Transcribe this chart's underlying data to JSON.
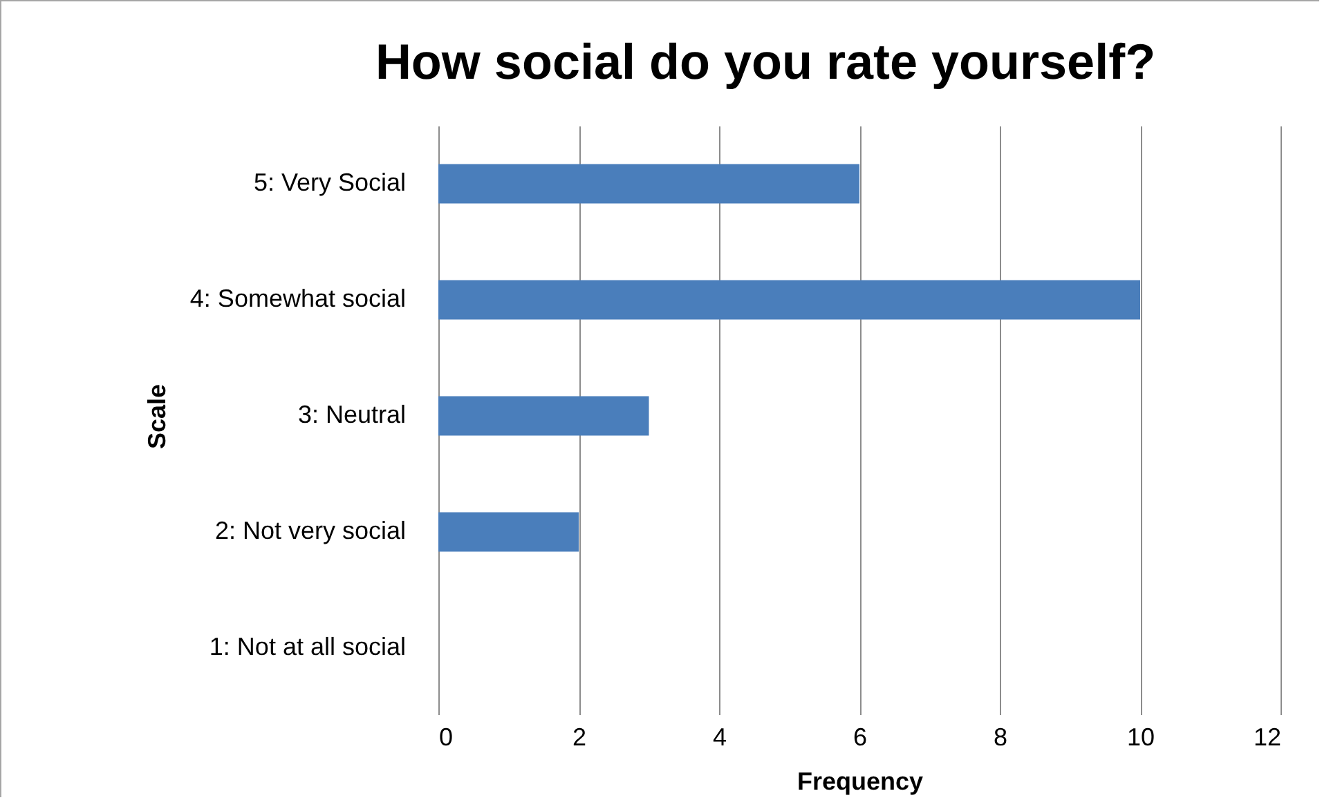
{
  "chart_data": {
    "type": "bar",
    "orientation": "horizontal",
    "title": "How social do you rate yourself?",
    "xlabel": "Frequency",
    "ylabel": "Scale",
    "categories": [
      "5: Very Social",
      "4: Somewhat social",
      "3: Neutral",
      "2: Not very social",
      "1: Not at all social"
    ],
    "values": [
      6,
      10,
      3,
      2,
      0
    ],
    "color": "#4a7ebb",
    "xlim": [
      0,
      12
    ],
    "xticks": [
      0,
      2,
      4,
      6,
      8,
      10,
      12
    ],
    "grid": "x"
  }
}
